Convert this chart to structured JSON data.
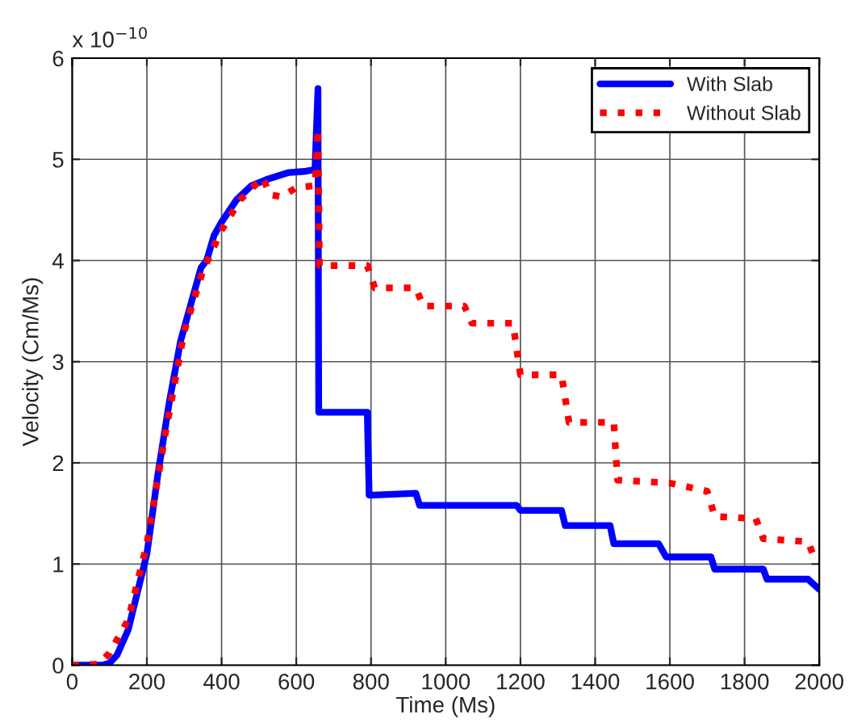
{
  "chart_data": {
    "type": "line",
    "xlabel": "Time (Ms)",
    "ylabel": "Velocity (Cm/Ms)",
    "annotations": [
      "x 10$^{−10}$"
    ],
    "xlim": [
      0,
      2000
    ],
    "xticks": [
      0,
      200,
      400,
      600,
      800,
      1000,
      1200,
      1400,
      1600,
      1800,
      2000
    ],
    "ylim": [
      0,
      6
    ],
    "yticks": [
      0,
      1,
      2,
      3,
      4,
      5,
      6
    ],
    "grid": true,
    "legend": "top right",
    "series": [
      {
        "name": "With Slab",
        "color": "#0000ff",
        "line_style": "solid",
        "x": [
          0,
          80,
          100,
          120,
          150,
          180,
          200,
          230,
          260,
          290,
          320,
          345,
          360,
          380,
          400,
          440,
          480,
          520,
          580,
          620,
          650,
          658,
          660,
          790,
          795,
          920,
          930,
          1190,
          1200,
          1310,
          1320,
          1440,
          1450,
          1570,
          1590,
          1710,
          1720,
          1850,
          1860,
          1970,
          2000
        ],
        "values": [
          0,
          0,
          0.02,
          0.1,
          0.35,
          0.8,
          1.1,
          1.9,
          2.6,
          3.2,
          3.6,
          3.93,
          4.0,
          4.25,
          4.38,
          4.6,
          4.74,
          4.8,
          4.87,
          4.88,
          4.9,
          5.7,
          2.5,
          2.5,
          1.68,
          1.7,
          1.58,
          1.58,
          1.53,
          1.53,
          1.38,
          1.38,
          1.2,
          1.2,
          1.07,
          1.07,
          0.95,
          0.95,
          0.85,
          0.85,
          0.75
        ]
      },
      {
        "name": "Without Slab",
        "color": "#ff0000",
        "line_style": "dotted",
        "x": [
          0,
          70,
          100,
          150,
          200,
          250,
          300,
          350,
          400,
          450,
          510,
          530,
          560,
          600,
          650,
          658,
          662,
          790,
          810,
          920,
          940,
          1050,
          1070,
          1180,
          1200,
          1310,
          1330,
          1450,
          1460,
          1600,
          1700,
          1720,
          1830,
          1850,
          1970,
          1990
        ],
        "values": [
          0,
          0.01,
          0.12,
          0.45,
          1.2,
          2.3,
          3.3,
          3.9,
          4.3,
          4.6,
          4.82,
          4.65,
          4.63,
          4.72,
          4.74,
          5.3,
          3.95,
          3.95,
          3.73,
          3.73,
          3.55,
          3.55,
          3.38,
          3.38,
          2.87,
          2.87,
          2.4,
          2.4,
          1.83,
          1.8,
          1.72,
          1.47,
          1.45,
          1.25,
          1.22,
          1.03
        ]
      }
    ]
  }
}
